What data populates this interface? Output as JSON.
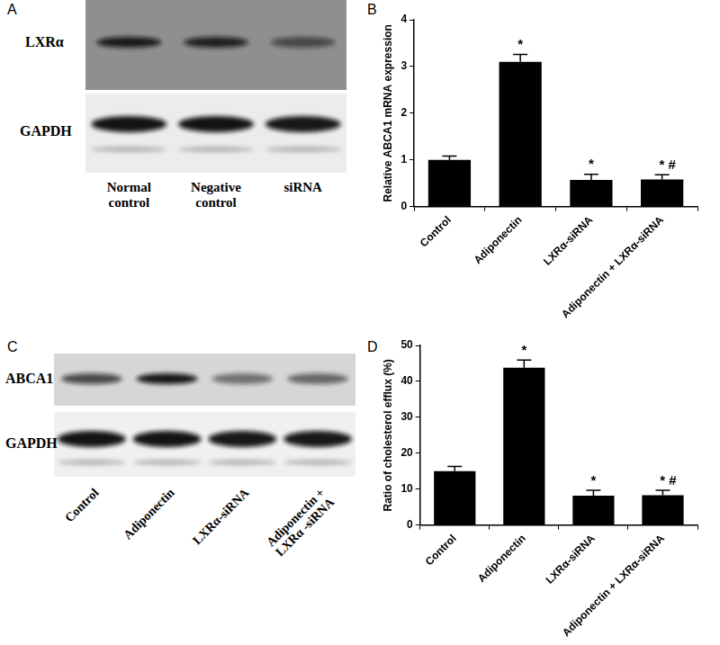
{
  "blots": [
    {
      "panel": "A",
      "rows": [
        "LXRα",
        "GAPDH"
      ],
      "lanes": [
        "Normal control",
        "Negative control",
        "siRNA"
      ]
    },
    {
      "panel": "C",
      "rows": [
        "ABCA1",
        "GAPDH"
      ],
      "lanes": [
        "Control",
        "Adiponectin",
        "LXRα-siRNA",
        "Adiponectin + LXRα -siRNA"
      ]
    }
  ],
  "chart_data": [
    {
      "panel": "B",
      "type": "bar",
      "y_label": "Relative ABCA1 mRNA expression",
      "categories": [
        "Control",
        "Adiponectin",
        "LXRα-siRNA",
        "Adiponectin + LXRα-siRNA"
      ],
      "values": [
        1.0,
        3.1,
        0.57,
        0.58
      ],
      "errors": [
        0.08,
        0.16,
        0.12,
        0.1
      ],
      "annotations": [
        null,
        "*",
        "*",
        "* #"
      ],
      "color": "#000000",
      "ylim": [
        0,
        4
      ],
      "yticks": [
        0,
        1,
        2,
        3,
        4
      ],
      "grid": false
    },
    {
      "panel": "D",
      "type": "bar",
      "y_label": "Ratio of cholesterol efflux (%)",
      "categories": [
        "Control",
        "Adiponectin",
        "LXRα-siRNA",
        "Adiponectin + LXRα-siRNA"
      ],
      "values": [
        15.0,
        43.8,
        8.2,
        8.3
      ],
      "errors": [
        1.3,
        2.1,
        1.5,
        1.4
      ],
      "annotations": [
        null,
        "*",
        "*",
        "* #"
      ],
      "color": "#000000",
      "ylim": [
        0,
        50
      ],
      "yticks": [
        0,
        10,
        20,
        30,
        40,
        50
      ],
      "grid": false
    }
  ]
}
